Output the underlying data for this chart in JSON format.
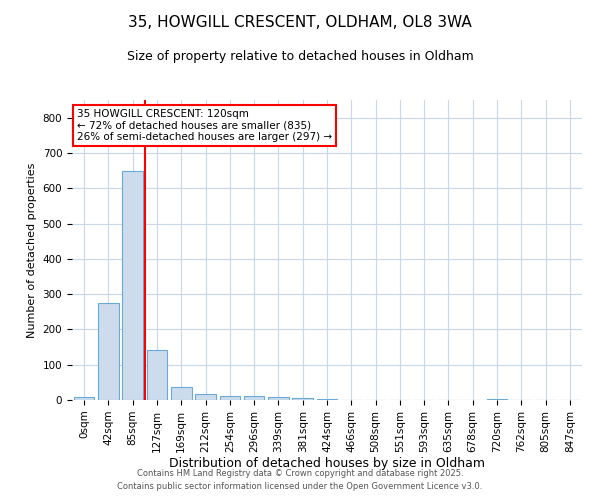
{
  "title1": "35, HOWGILL CRESCENT, OLDHAM, OL8 3WA",
  "title2": "Size of property relative to detached houses in Oldham",
  "xlabel": "Distribution of detached houses by size in Oldham",
  "ylabel": "Number of detached properties",
  "bar_labels": [
    "0sqm",
    "42sqm",
    "85sqm",
    "127sqm",
    "169sqm",
    "212sqm",
    "254sqm",
    "296sqm",
    "339sqm",
    "381sqm",
    "424sqm",
    "466sqm",
    "508sqm",
    "551sqm",
    "593sqm",
    "635sqm",
    "678sqm",
    "720sqm",
    "762sqm",
    "805sqm",
    "847sqm"
  ],
  "bar_values": [
    8,
    275,
    648,
    143,
    38,
    18,
    12,
    10,
    9,
    5,
    2,
    0,
    0,
    0,
    0,
    0,
    0,
    4,
    0,
    0,
    0
  ],
  "bar_color": "#ccdcec",
  "bar_edgecolor": "#6aaad4",
  "vline_x": 2.5,
  "vline_color": "red",
  "annotation_text": "35 HOWGILL CRESCENT: 120sqm\n← 72% of detached houses are smaller (835)\n26% of semi-detached houses are larger (297) →",
  "annotation_box_color": "white",
  "annotation_box_edgecolor": "red",
  "ylim": [
    0,
    850
  ],
  "yticks": [
    0,
    100,
    200,
    300,
    400,
    500,
    600,
    700,
    800
  ],
  "footer1": "Contains HM Land Registry data © Crown copyright and database right 2025.",
  "footer2": "Contains public sector information licensed under the Open Government Licence v3.0.",
  "background_color": "white",
  "grid_color": "#c8d8e8",
  "title_fontsize": 11,
  "subtitle_fontsize": 9,
  "tick_fontsize": 7.5,
  "ylabel_fontsize": 8,
  "xlabel_fontsize": 9
}
